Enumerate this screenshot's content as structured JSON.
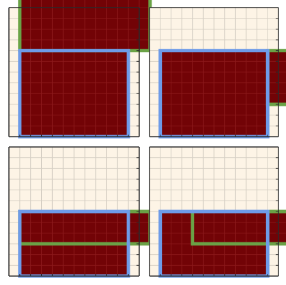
{
  "colors": {
    "board_background": "#fdf4e6",
    "grid_line": "#d6cfc4",
    "frame": "#2b2b2b",
    "block_fill": "#720306",
    "blue_outline": "#6e9be8",
    "green_outline": "#6aa246"
  },
  "grid": {
    "columns": 12,
    "rows": 12
  },
  "boards": [
    {
      "rectangles": [
        {
          "outline": "blue",
          "col": 1,
          "row": 0,
          "width": 10,
          "height": 8
        },
        {
          "outline": "green",
          "col": 1,
          "row": 8,
          "width": 12,
          "height": 5
        }
      ]
    },
    {
      "rectangles": [
        {
          "outline": "blue",
          "col": 1,
          "row": 0,
          "width": 10,
          "height": 8
        },
        {
          "outline": "green",
          "col": 11,
          "row": 3,
          "width": 2,
          "height": 5
        }
      ]
    },
    {
      "rectangles": [
        {
          "outline": "blue",
          "col": 1,
          "row": 0,
          "width": 10,
          "height": 6
        },
        {
          "outline": "green",
          "col": 1,
          "row": 3,
          "width": 12,
          "height": 3
        }
      ]
    },
    {
      "rectangles": [
        {
          "outline": "blue",
          "col": 1,
          "row": 0,
          "width": 10,
          "height": 6
        },
        {
          "outline": "green",
          "col": 4,
          "row": 3,
          "width": 9,
          "height": 3
        }
      ]
    }
  ]
}
